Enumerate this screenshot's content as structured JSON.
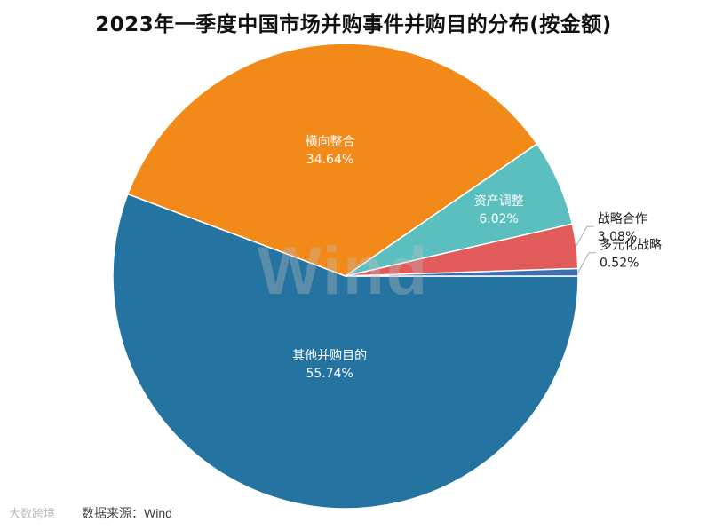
{
  "chart_data": {
    "type": "pie",
    "title": "2023年一季度中国市场并购事件并购目的分布(按金额)",
    "slices": [
      {
        "label": "其他并购目的",
        "value": 55.74,
        "value_label": "55.74%",
        "color": "#2473a0"
      },
      {
        "label": "横向整合",
        "value": 34.64,
        "value_label": "34.64%",
        "color": "#f28a1a"
      },
      {
        "label": "资产调整",
        "value": 6.02,
        "value_label": "6.02%",
        "color": "#5bbfbf"
      },
      {
        "label": "战略合作",
        "value": 3.08,
        "value_label": "3.08%",
        "color": "#e15b5b"
      },
      {
        "label": "多元化战略",
        "value": 0.52,
        "value_label": "0.52%",
        "color": "#3d6fb0"
      }
    ]
  },
  "watermark": "Wind",
  "source": "数据来源：Wind",
  "source_logo": "大数跨境"
}
